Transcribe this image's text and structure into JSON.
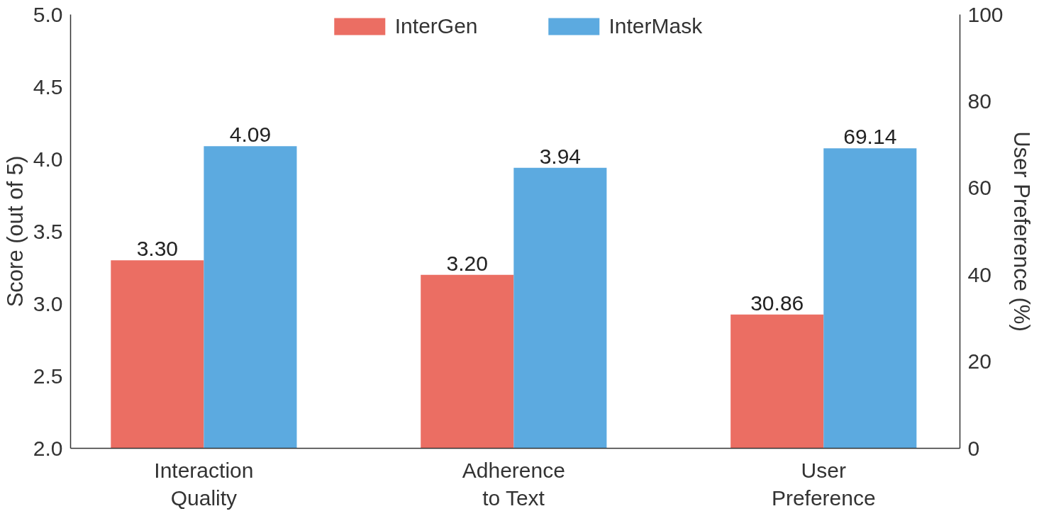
{
  "chart_data": {
    "type": "bar",
    "categories": [
      "Interaction Quality",
      "Adherence to Text",
      "User Preference"
    ],
    "ylabel": "Score (out of 5)",
    "y2label": "User Preference (%)",
    "ylim": [
      2.0,
      5.0
    ],
    "yticks": [
      {
        "value": 2.0,
        "label": "2.0"
      },
      {
        "value": 2.5,
        "label": "2.5"
      },
      {
        "value": 3.0,
        "label": "3.0"
      },
      {
        "value": 3.5,
        "label": "3.5"
      },
      {
        "value": 4.0,
        "label": "4.0"
      },
      {
        "value": 4.5,
        "label": "4.5"
      },
      {
        "value": 5.0,
        "label": "5.0"
      }
    ],
    "y2lim": [
      0,
      100
    ],
    "y2ticks": [
      0,
      20,
      40,
      60,
      80,
      100
    ],
    "series": [
      {
        "name": "InterGen",
        "color": "#eb6e63",
        "values": [
          3.3,
          3.2,
          null
        ],
        "value_labels": [
          "3.30",
          "3.20",
          null
        ]
      },
      {
        "name": "InterMask",
        "color": "#5caae0",
        "values": [
          4.09,
          3.94,
          null
        ],
        "value_labels": [
          "4.09",
          "3.94",
          null
        ]
      },
      {
        "color": "#eb6e63",
        "axis": "y2",
        "values": [
          null,
          null,
          30.86
        ],
        "value_labels": [
          null,
          null,
          "30.86"
        ]
      },
      {
        "color": "#5caae0",
        "axis": "y2",
        "values": [
          null,
          null,
          69.14
        ],
        "value_labels": [
          null,
          null,
          "69.14"
        ]
      }
    ],
    "legend": "top",
    "grid": false
  }
}
